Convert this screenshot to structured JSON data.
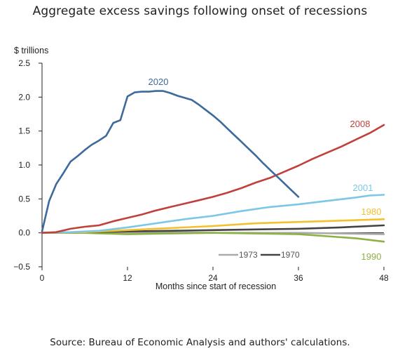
{
  "title": "Aggregate excess savings following onset of recessions",
  "source": "Source: Bureau of Economic Analysis and authors' calculations.",
  "chart_data": {
    "type": "line",
    "ylabel": "$ trillions",
    "xlabel": "Months since start of recession",
    "xlim": [
      0,
      48
    ],
    "ylim": [
      -0.5,
      2.5
    ],
    "xticks": [
      0,
      12,
      24,
      36,
      48
    ],
    "xtick_labels": [
      "0",
      "12",
      "24",
      "36",
      "48"
    ],
    "yticks": [
      -0.5,
      0.0,
      0.5,
      1.0,
      1.5,
      2.0,
      2.5
    ],
    "ytick_labels": [
      "−0.5",
      "0.0",
      "0.5",
      "1.0",
      "1.5",
      "2.0",
      "2.5"
    ],
    "grid": false,
    "legend": {
      "placement": "bottom-center",
      "entries": [
        "1973",
        "1970"
      ]
    },
    "series": [
      {
        "name": "2020",
        "color": "#3d6a9a",
        "x": [
          0,
          1,
          2,
          3,
          4,
          5,
          6,
          7,
          8,
          9,
          10,
          11,
          12,
          13,
          14,
          15,
          16,
          17,
          18,
          19,
          20,
          21,
          22,
          23,
          24,
          25,
          26,
          27,
          28,
          29,
          30,
          31,
          32,
          33,
          34,
          35,
          36
        ],
        "values": [
          0.02,
          0.47,
          0.72,
          0.88,
          1.05,
          1.13,
          1.22,
          1.3,
          1.36,
          1.43,
          1.62,
          1.66,
          2.01,
          2.07,
          2.08,
          2.08,
          2.09,
          2.09,
          2.06,
          2.02,
          1.99,
          1.96,
          1.89,
          1.81,
          1.73,
          1.64,
          1.54,
          1.44,
          1.34,
          1.24,
          1.14,
          1.03,
          0.93,
          0.83,
          0.73,
          0.63,
          0.53
        ]
      },
      {
        "name": "2008",
        "color": "#c0403c",
        "x": [
          0,
          2,
          4,
          6,
          8,
          10,
          12,
          14,
          16,
          18,
          20,
          22,
          24,
          26,
          28,
          30,
          32,
          34,
          36,
          38,
          40,
          42,
          44,
          46,
          48
        ],
        "values": [
          0.0,
          0.01,
          0.06,
          0.09,
          0.11,
          0.17,
          0.22,
          0.27,
          0.33,
          0.38,
          0.43,
          0.48,
          0.53,
          0.59,
          0.66,
          0.74,
          0.81,
          0.9,
          0.99,
          1.09,
          1.18,
          1.27,
          1.37,
          1.47,
          1.59
        ]
      },
      {
        "name": "2001",
        "color": "#7cc7e6",
        "x": [
          0,
          4,
          8,
          12,
          16,
          20,
          24,
          28,
          32,
          36,
          40,
          44,
          46,
          48
        ],
        "values": [
          0.0,
          0.01,
          0.03,
          0.08,
          0.14,
          0.2,
          0.25,
          0.32,
          0.38,
          0.42,
          0.47,
          0.52,
          0.55,
          0.56
        ]
      },
      {
        "name": "1980",
        "color": "#f2c12e",
        "x": [
          0,
          6,
          12,
          18,
          24,
          30,
          36,
          42,
          48
        ],
        "values": [
          0.0,
          0.01,
          0.04,
          0.07,
          0.1,
          0.14,
          0.16,
          0.18,
          0.2
        ]
      },
      {
        "name": "1970",
        "color": "#444444",
        "x": [
          0,
          6,
          12,
          18,
          24,
          30,
          36,
          42,
          48
        ],
        "values": [
          0.0,
          0.01,
          0.02,
          0.03,
          0.04,
          0.05,
          0.06,
          0.08,
          0.11
        ]
      },
      {
        "name": "1973",
        "color": "#aaaaaa",
        "x": [
          0,
          6,
          12,
          18,
          24,
          30,
          36,
          42,
          48
        ],
        "values": [
          0.0,
          0.0,
          0.01,
          0.01,
          0.0,
          0.0,
          0.0,
          -0.01,
          -0.02
        ]
      },
      {
        "name": "1990",
        "color": "#8cb144",
        "x": [
          0,
          6,
          12,
          18,
          24,
          30,
          36,
          40,
          44,
          48
        ],
        "values": [
          0.0,
          0.0,
          -0.02,
          -0.01,
          0.0,
          -0.01,
          -0.02,
          -0.05,
          -0.08,
          -0.13
        ]
      }
    ]
  }
}
